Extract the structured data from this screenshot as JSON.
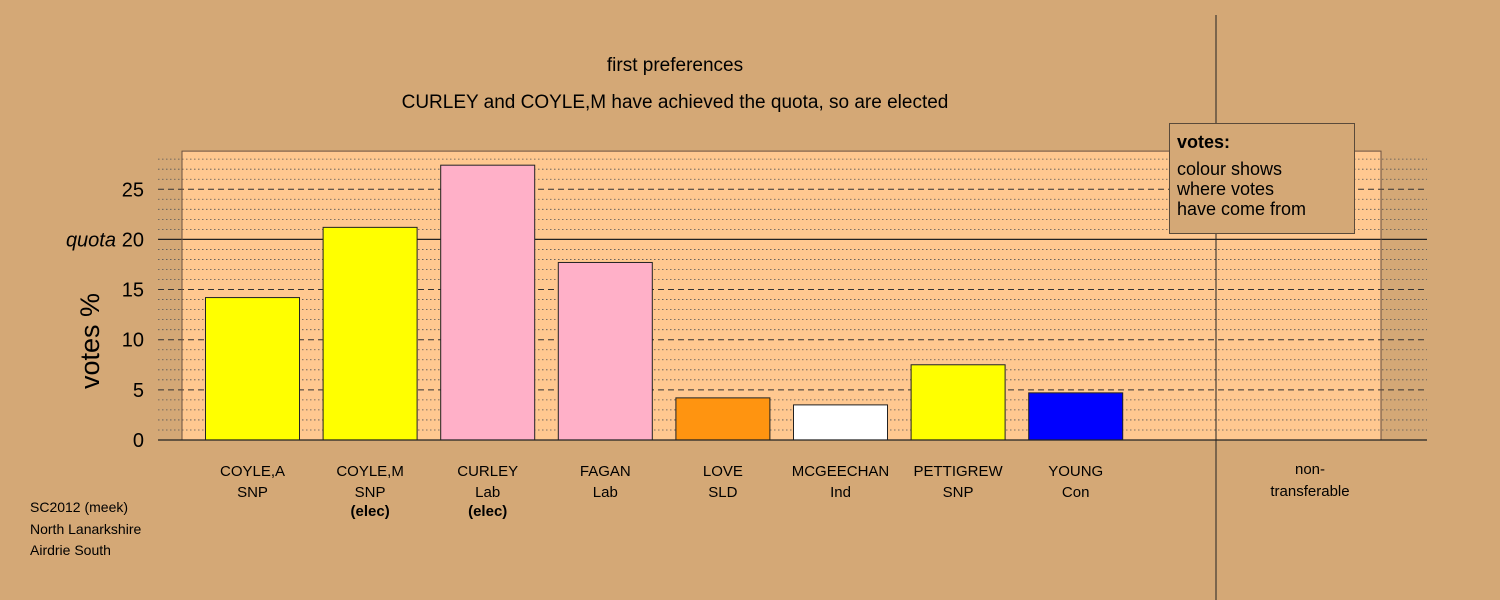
{
  "chart_data": {
    "type": "bar",
    "title": "first preferences",
    "subtitle": "CURLEY and COYLE,M have achieved the quota, so are elected",
    "ylabel": "votes %",
    "ylim": [
      0,
      28.8
    ],
    "yticks": [
      "0",
      "5",
      "10",
      "15",
      "20",
      "25"
    ],
    "quota_label": "quota",
    "quota_value": 20,
    "categories": [
      {
        "name": "COYLE,A",
        "party": "SNP",
        "note": "",
        "value": 14.2,
        "color": "#ffff00"
      },
      {
        "name": "COYLE,M",
        "party": "SNP",
        "note": "(elec)",
        "value": 21.2,
        "color": "#ffff00"
      },
      {
        "name": "CURLEY",
        "party": "Lab",
        "note": "(elec)",
        "value": 27.4,
        "color": "#ffb0c8"
      },
      {
        "name": "FAGAN",
        "party": "Lab",
        "note": "",
        "value": 17.7,
        "color": "#ffb0c8"
      },
      {
        "name": "LOVE",
        "party": "SLD",
        "note": "",
        "value": 4.2,
        "color": "#ff9410"
      },
      {
        "name": "MCGEECHAN",
        "party": "Ind",
        "note": "",
        "value": 3.5,
        "color": "#ffffff"
      },
      {
        "name": "PETTIGREW",
        "party": "SNP",
        "note": "",
        "value": 7.5,
        "color": "#ffff00"
      },
      {
        "name": "YOUNG",
        "party": "Con",
        "note": "",
        "value": 4.7,
        "color": "#0000ff"
      }
    ],
    "nontransferable": {
      "label_line1": "non-",
      "label_line2": "transferable",
      "value": 0
    },
    "grid": true,
    "colors": {
      "background": "#d4a876",
      "plot_area": "#ffc890"
    }
  },
  "legend": {
    "title": "votes:",
    "line1": "colour shows",
    "line2": "where votes",
    "line3": "have come from"
  },
  "footer": {
    "line1": "SC2012 (meek)",
    "line2": "North Lanarkshire",
    "line3": "Airdrie South"
  }
}
